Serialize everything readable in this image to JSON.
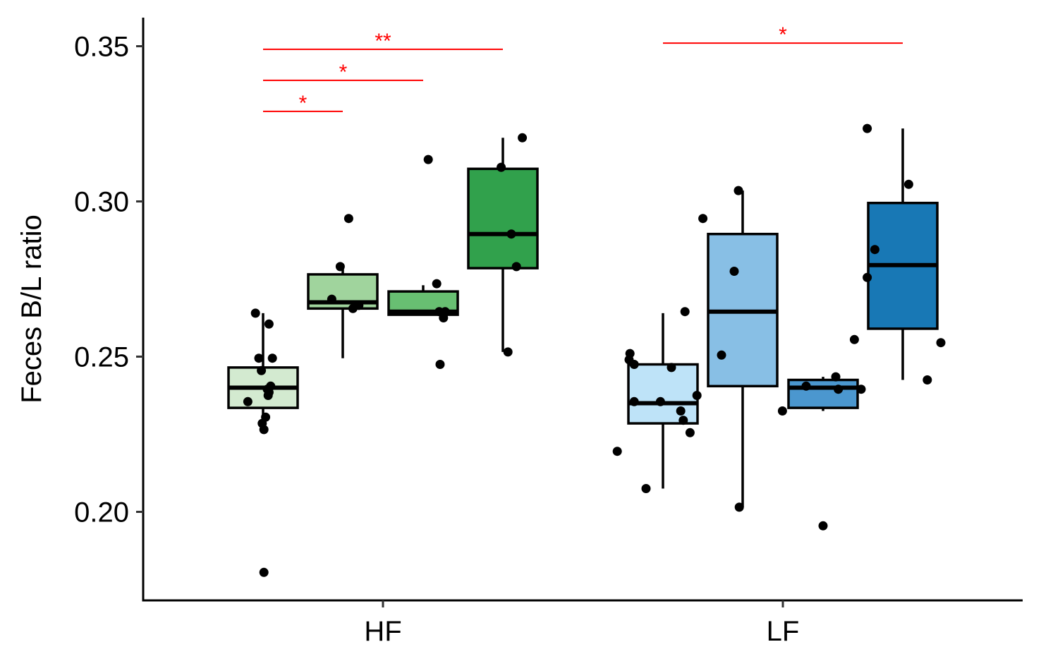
{
  "chart_data": {
    "type": "box",
    "ylabel": "Feces B/L ratio",
    "xlabel": "",
    "ylim": [
      0.171,
      0.358
    ],
    "yticks": [
      0.2,
      0.25,
      0.3,
      0.35
    ],
    "ytick_labels": [
      "0.20",
      "0.25",
      "0.30",
      "0.35"
    ],
    "categories": [
      "HF",
      "LF"
    ],
    "groups": [
      {
        "category": "HF",
        "boxes": [
          {
            "color": "#d3ead0",
            "q1": 0.2335,
            "median": 0.24,
            "q3": 0.2465,
            "whisker_low": 0.2285,
            "whisker_high": 0.264,
            "points": [
              [
                -0.09,
                0.264
              ],
              [
                -0.18,
                0.2355
              ],
              [
                -0.05,
                0.2495
              ],
              [
                -0.02,
                0.2455
              ],
              [
                0.07,
                0.2605
              ],
              [
                0.11,
                0.2495
              ],
              [
                0.09,
                0.2405
              ],
              [
                0.07,
                0.2385
              ],
              [
                0.05,
                0.2395
              ],
              [
                0.06,
                0.2375
              ],
              [
                0.03,
                0.2305
              ],
              [
                -0.01,
                0.2285
              ],
              [
                0.01,
                0.2265
              ],
              [
                0.01,
                0.1805
              ]
            ]
          },
          {
            "color": "#a0d49d",
            "q1": 0.2655,
            "median": 0.2675,
            "q3": 0.2765,
            "whisker_low": 0.2495,
            "whisker_high": 0.2785,
            "points": [
              [
                -0.03,
                0.279
              ],
              [
                -0.13,
                0.2685
              ],
              [
                0.07,
                0.2945
              ],
              [
                0.19,
                0.2665
              ],
              [
                0.12,
                0.2655
              ]
            ]
          },
          {
            "color": "#68bf72",
            "q1": 0.2635,
            "median": 0.2645,
            "q3": 0.271,
            "whisker_low": 0.2635,
            "whisker_high": 0.273,
            "points": [
              [
                0.06,
                0.3135
              ],
              [
                0.16,
                0.2735
              ],
              [
                0.19,
                0.2645
              ],
              [
                0.26,
                0.2645
              ],
              [
                0.24,
                0.2625
              ],
              [
                0.2,
                0.2475
              ]
            ]
          },
          {
            "color": "#31a14c",
            "q1": 0.2785,
            "median": 0.2895,
            "q3": 0.3105,
            "whisker_low": 0.2515,
            "whisker_high": 0.3205,
            "points": [
              [
                -0.02,
                0.311
              ],
              [
                0.23,
                0.3205
              ],
              [
                0.1,
                0.2895
              ],
              [
                0.16,
                0.279
              ],
              [
                0.06,
                0.2515
              ]
            ]
          }
        ]
      },
      {
        "category": "LF",
        "boxes": [
          {
            "color": "#bee3f8",
            "q1": 0.2285,
            "median": 0.235,
            "q3": 0.2475,
            "whisker_low": 0.2075,
            "whisker_high": 0.264,
            "points": [
              [
                -0.39,
                0.251
              ],
              [
                -0.4,
                0.249
              ],
              [
                -0.34,
                0.2475
              ],
              [
                -0.34,
                0.2355
              ],
              [
                -0.03,
                0.2355
              ],
              [
                0.1,
                0.2465
              ],
              [
                0.26,
                0.2645
              ],
              [
                0.21,
                0.2325
              ],
              [
                0.24,
                0.2295
              ],
              [
                0.32,
                0.2255
              ],
              [
                -0.54,
                0.2195
              ],
              [
                -0.2,
                0.2075
              ]
            ]
          },
          {
            "color": "#88bfe5",
            "q1": 0.2405,
            "median": 0.2645,
            "q3": 0.2895,
            "whisker_low": 0.2015,
            "whisker_high": 0.3035,
            "points": [
              [
                -0.05,
                0.3035
              ],
              [
                -0.47,
                0.2945
              ],
              [
                -0.1,
                0.2775
              ],
              [
                -0.25,
                0.2505
              ],
              [
                -0.54,
                0.2375
              ],
              [
                -0.04,
                0.2015
              ]
            ]
          },
          {
            "color": "#4b97cf",
            "q1": 0.2335,
            "median": 0.24,
            "q3": 0.2425,
            "whisker_low": 0.2325,
            "whisker_high": 0.2435,
            "points": [
              [
                0.37,
                0.2555
              ],
              [
                0.15,
                0.2435
              ],
              [
                -0.2,
                0.2405
              ],
              [
                0.18,
                0.2395
              ],
              [
                -0.48,
                0.2325
              ],
              [
                0.45,
                0.2395
              ],
              [
                0.0,
                0.1955
              ]
            ]
          },
          {
            "color": "#1878b5",
            "q1": 0.259,
            "median": 0.2795,
            "q3": 0.2995,
            "whisker_low": 0.2425,
            "whisker_high": 0.3235,
            "points": [
              [
                -0.42,
                0.3235
              ],
              [
                0.07,
                0.3055
              ],
              [
                -0.33,
                0.2845
              ],
              [
                -0.42,
                0.2755
              ],
              [
                0.45,
                0.2545
              ],
              [
                0.29,
                0.2425
              ]
            ]
          }
        ]
      }
    ],
    "significance": [
      {
        "group": 0,
        "from_box": 0,
        "to_box": 1,
        "y": 0.329,
        "label": "*"
      },
      {
        "group": 0,
        "from_box": 0,
        "to_box": 2,
        "y": 0.339,
        "label": "*"
      },
      {
        "group": 0,
        "from_box": 0,
        "to_box": 3,
        "y": 0.349,
        "label": "**"
      },
      {
        "group": 1,
        "from_box": 0,
        "to_box": 3,
        "y": 0.351,
        "label": "*"
      }
    ],
    "significance_color": "#ff0000",
    "grid": false
  }
}
